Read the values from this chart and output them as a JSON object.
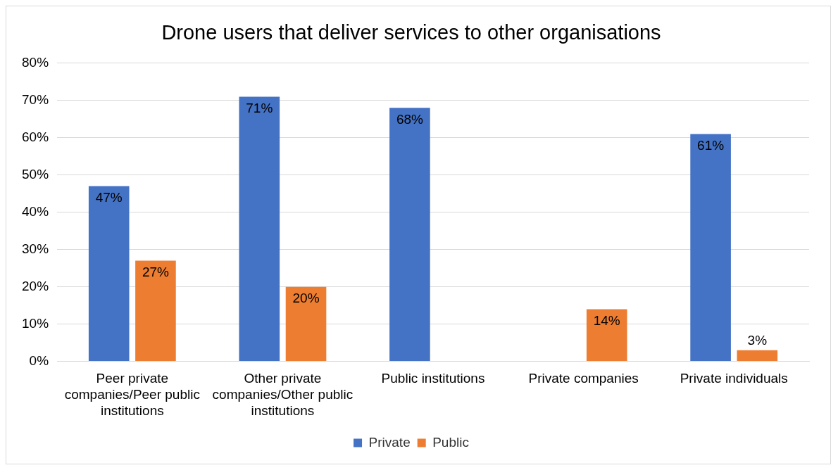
{
  "chart_data": {
    "type": "bar",
    "title": "Drone users that deliver services to other organisations",
    "categories": [
      "Peer private companies/Peer public institutions",
      "Other private companies/Other public institutions",
      "Public institutions",
      "Private companies",
      "Private individuals"
    ],
    "series": [
      {
        "name": "Private",
        "color": "#4472c4",
        "values": [
          47,
          71,
          68,
          null,
          61
        ],
        "value_labels": [
          "47%",
          "71%",
          "68%",
          null,
          "61%"
        ]
      },
      {
        "name": "Public",
        "color": "#ed7d31",
        "values": [
          27,
          20,
          null,
          14,
          3
        ],
        "value_labels": [
          "27%",
          "20%",
          null,
          "14%",
          "3%"
        ]
      }
    ],
    "ylim": [
      0,
      80
    ],
    "yticks": [
      {
        "value": 0,
        "label": "0%"
      },
      {
        "value": 10,
        "label": "10%"
      },
      {
        "value": 20,
        "label": "20%"
      },
      {
        "value": 30,
        "label": "30%"
      },
      {
        "value": 40,
        "label": "40%"
      },
      {
        "value": 50,
        "label": "50%"
      },
      {
        "value": 60,
        "label": "60%"
      },
      {
        "value": 70,
        "label": "70%"
      },
      {
        "value": 80,
        "label": "80%"
      }
    ],
    "grid": "y",
    "legend": "bottom"
  }
}
